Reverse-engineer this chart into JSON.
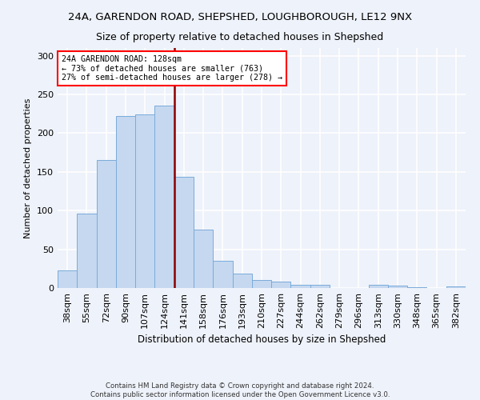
{
  "title": "24A, GARENDON ROAD, SHEPSHED, LOUGHBOROUGH, LE12 9NX",
  "subtitle": "Size of property relative to detached houses in Shepshed",
  "xlabel": "Distribution of detached houses by size in Shepshed",
  "ylabel": "Number of detached properties",
  "categories": [
    "38sqm",
    "55sqm",
    "72sqm",
    "90sqm",
    "107sqm",
    "124sqm",
    "141sqm",
    "158sqm",
    "176sqm",
    "193sqm",
    "210sqm",
    "227sqm",
    "244sqm",
    "262sqm",
    "279sqm",
    "296sqm",
    "313sqm",
    "330sqm",
    "348sqm",
    "365sqm",
    "382sqm"
  ],
  "values": [
    23,
    96,
    165,
    222,
    224,
    236,
    144,
    75,
    35,
    19,
    10,
    8,
    4,
    4,
    0,
    0,
    4,
    3,
    1,
    0,
    2
  ],
  "bar_color": "#c5d8f0",
  "bar_edge_color": "#7aabda",
  "property_line_x": 5.5,
  "annotation_line1": "24A GARENDON ROAD: 128sqm",
  "annotation_line2": "← 73% of detached houses are smaller (763)",
  "annotation_line3": "27% of semi-detached houses are larger (278) →",
  "annotation_box_color": "white",
  "annotation_box_edge": "red",
  "vline_color": "#8b0000",
  "footer": "Contains HM Land Registry data © Crown copyright and database right 2024.\nContains public sector information licensed under the Open Government Licence v3.0.",
  "ylim": [
    0,
    310
  ],
  "yticks": [
    0,
    50,
    100,
    150,
    200,
    250,
    300
  ],
  "background_color": "#eef2fa",
  "grid_color": "#ffffff"
}
